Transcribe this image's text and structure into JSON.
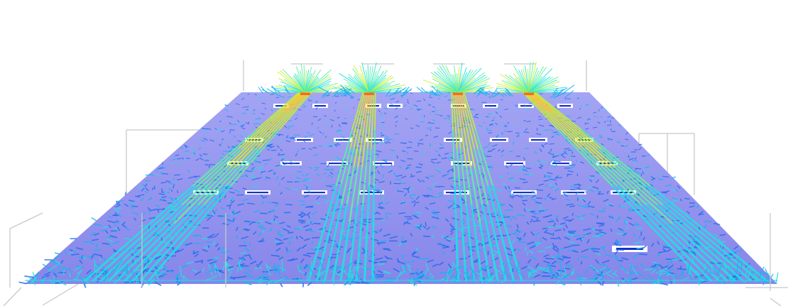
{
  "scene": {
    "subject": "cfd-airflow-vector-field",
    "background_color": "#ffffff",
    "floor_color": "#8f8ff0",
    "wireframe_color": "#c8c8c8",
    "colormap": [
      "#1e6cf0",
      "#18b4ee",
      "#20e0e0",
      "#5ef0a0",
      "#c8f030",
      "#ffd020",
      "#ff6a10"
    ],
    "jet_count": 4,
    "vent_rows": 4,
    "vent_color": "#1530c8"
  }
}
